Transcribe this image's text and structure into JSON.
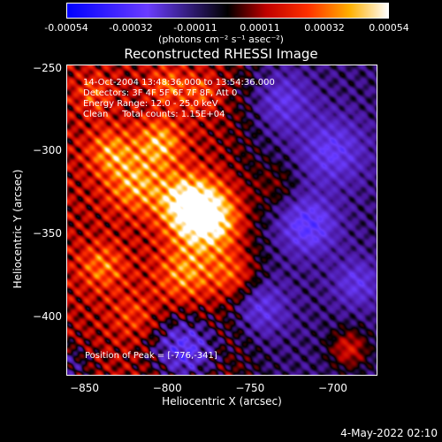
{
  "chart_data": {
    "type": "heatmap",
    "title": "Reconstructed RHESSI Image",
    "xlabel": "Heliocentric X (arcsec)",
    "ylabel": "Heliocentric Y (arcsec)",
    "xlim": [
      -861,
      -673
    ],
    "ylim": [
      -436,
      -248
    ],
    "x_ticks": [
      -850,
      -800,
      -750,
      -700
    ],
    "y_ticks": [
      -250,
      -300,
      -350,
      -400
    ],
    "colorbar": {
      "ticks": [
        "-0.00054",
        "-0.00032",
        "-0.00011",
        "0.00011",
        "0.00032",
        "0.00054"
      ],
      "range": [
        -0.00054,
        0.00054
      ],
      "units": "(photons cm⁻² s⁻¹ asec⁻²)"
    },
    "peak": [
      -776,
      -341
    ],
    "annotations": {
      "line1": "14-Oct-2004 13:48:36.000 to 13:54:36.000",
      "line2": "Detectors: 3F 4F 5F 6F 7F 8F, Att 0",
      "line3": "Energy Range: 12.0 - 25.0 keV",
      "line4": "Clean     Total counts: 1.15E+04",
      "peak_text": "Position of Peak = [-776,-341]"
    },
    "colors": {
      "low": "#0000ff",
      "mid_low": "#8a2be2",
      "mid": "#000000",
      "mid_high": "#ff2000",
      "high": "#ffffff"
    }
  },
  "footer": {
    "timestamp": "4-May-2022 02:10"
  }
}
